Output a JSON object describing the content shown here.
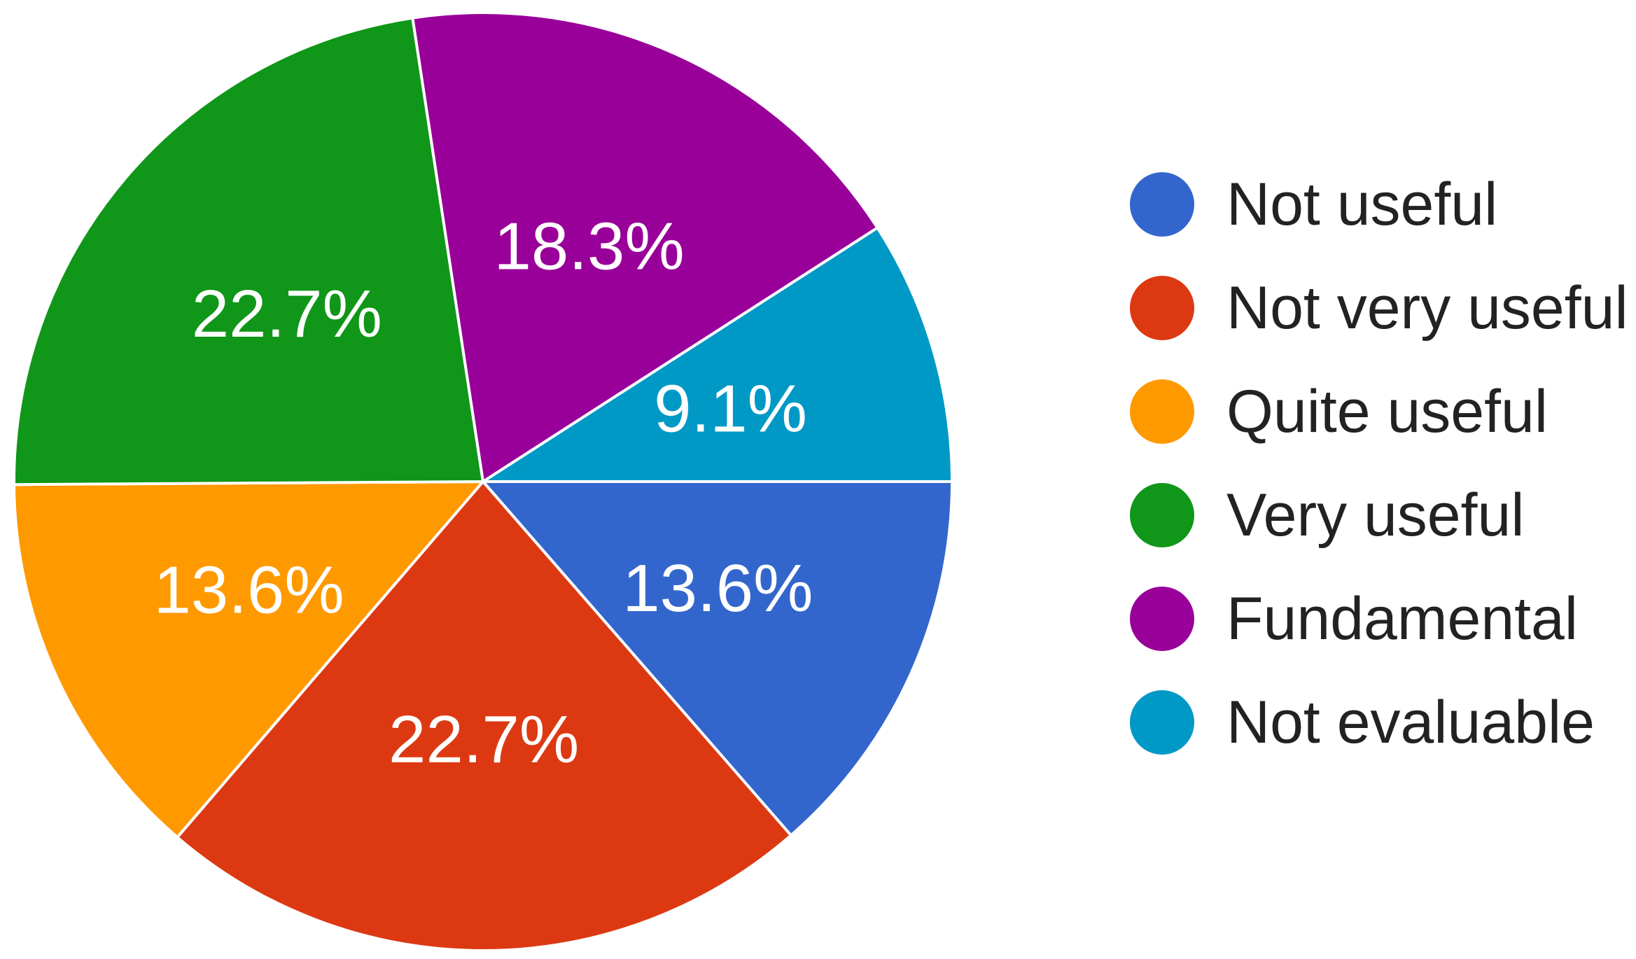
{
  "chart_data": {
    "type": "pie",
    "title": "",
    "categories": [
      "Not useful",
      "Not very useful",
      "Quite useful",
      "Very useful",
      "Fundamental",
      "Not evaluable"
    ],
    "values": [
      13.6,
      22.7,
      13.6,
      22.7,
      18.3,
      9.1
    ],
    "value_labels": [
      "13.6%",
      "22.7%",
      "13.6%",
      "22.7%",
      "18.3%",
      "9.1%"
    ],
    "colors": [
      "#3366cc",
      "#dc3912",
      "#ff9900",
      "#109618",
      "#990099",
      "#0099c6"
    ],
    "start_angle_deg": 0,
    "direction": "clockwise",
    "legend_position": "right"
  }
}
